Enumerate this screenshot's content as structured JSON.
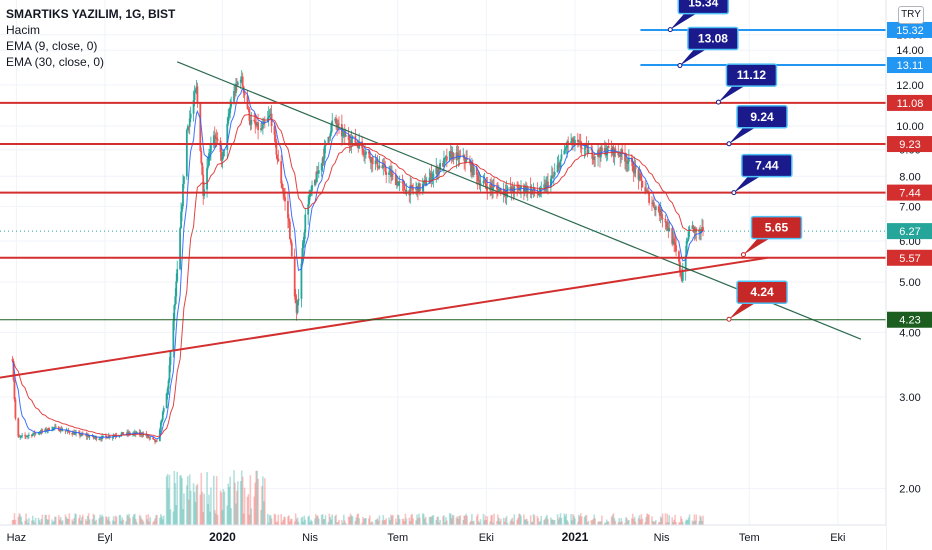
{
  "legend": {
    "title": "SMARTIKS YAZILIM, 1G, BIST",
    "volume": "Hacim",
    "ema9": "EMA (9, close, 0)",
    "ema30": "EMA (30, close, 0)"
  },
  "currency_button": "TRY",
  "colors": {
    "up": "#26a69a",
    "down": "#ef5350",
    "ema9": "#2962ff",
    "ema30": "#e03030",
    "level_red": "#d32f2f",
    "level_blue": "#2196f3",
    "level_green": "#1b5e20",
    "callout_navy": "#1a1a8c",
    "callout_red": "#c62828",
    "trend_down": "#2e6b4f",
    "trend_up": "#d32f2f",
    "last_price": "#26a69a"
  },
  "chart_data": {
    "type": "candlestick",
    "title": "SMARTIKS YAZILIM, 1G, BIST",
    "y_axis": {
      "scale": "log",
      "ticks": [
        "2.00",
        "3.00",
        "4.00",
        "5.00",
        "6.00",
        "7.00",
        "8.00",
        "9.00",
        "10.00",
        "12.00",
        "14.00",
        "15.00"
      ],
      "range": [
        1.7,
        17.5
      ]
    },
    "x_axis": {
      "ticks": [
        "Haz",
        "Eyl",
        "2020",
        "Nis",
        "Tem",
        "Eki",
        "2021",
        "Nis",
        "Tem",
        "Eki"
      ],
      "bold_ticks": [
        "2020",
        "2021"
      ],
      "range": [
        "2019-05-15",
        "2021-11-20"
      ]
    },
    "price_levels": [
      {
        "label": "15.32",
        "value": 15.32,
        "color": "blue",
        "from": "2021-03-10"
      },
      {
        "label": "13.11",
        "value": 13.11,
        "color": "blue",
        "from": "2021-03-10"
      },
      {
        "label": "11.08",
        "value": 11.08,
        "color": "red",
        "from": "2019-05-15"
      },
      {
        "label": "9.23",
        "value": 9.23,
        "color": "red",
        "from": "2019-05-15"
      },
      {
        "label": "7.44",
        "value": 7.44,
        "color": "red",
        "from": "2019-05-15"
      },
      {
        "label": "5.57",
        "value": 5.57,
        "color": "red",
        "from": "2019-05-15"
      },
      {
        "label": "4.23",
        "value": 4.23,
        "color": "green",
        "from": "2019-05-15"
      }
    ],
    "last_price": {
      "label": "6.27",
      "value": 6.27
    },
    "callouts": [
      {
        "label": "15.34",
        "value": 15.34,
        "anchor_date": "2021-04-10",
        "color": "navy"
      },
      {
        "label": "13.08",
        "value": 13.08,
        "anchor_date": "2021-04-20",
        "color": "navy"
      },
      {
        "label": "11.12",
        "value": 11.12,
        "anchor_date": "2021-05-30",
        "color": "navy"
      },
      {
        "label": "9.24",
        "value": 9.24,
        "anchor_date": "2021-06-10",
        "color": "navy"
      },
      {
        "label": "7.44",
        "value": 7.44,
        "anchor_date": "2021-06-15",
        "color": "navy"
      },
      {
        "label": "5.65",
        "value": 5.65,
        "anchor_date": "2021-06-25",
        "color": "red"
      },
      {
        "label": "4.24",
        "value": 4.24,
        "anchor_date": "2021-06-10",
        "color": "red"
      }
    ],
    "trendlines": [
      {
        "from": [
          "2019-05-05",
          3.25
        ],
        "to": [
          "2021-07-20",
          5.57
        ],
        "color": "red"
      },
      {
        "from": [
          "2019-11-15",
          13.3
        ],
        "to": [
          "2021-10-25",
          3.88
        ],
        "color": "green"
      }
    ],
    "price_path": [
      [
        "2019-05-28",
        3.55
      ],
      [
        "2019-06-01",
        2.5
      ],
      [
        "2019-06-20",
        2.55
      ],
      [
        "2019-07-10",
        2.62
      ],
      [
        "2019-08-01",
        2.55
      ],
      [
        "2019-08-25",
        2.5
      ],
      [
        "2019-09-20",
        2.55
      ],
      [
        "2019-10-10",
        2.55
      ],
      [
        "2019-10-25",
        2.45
      ],
      [
        "2019-11-05",
        3.1
      ],
      [
        "2019-11-15",
        5.2
      ],
      [
        "2019-11-25",
        9.8
      ],
      [
        "2019-12-05",
        11.8
      ],
      [
        "2019-12-12",
        7.5
      ],
      [
        "2019-12-22",
        9.8
      ],
      [
        "2020-01-01",
        8.6
      ],
      [
        "2020-01-10",
        11.2
      ],
      [
        "2020-01-20",
        12.5
      ],
      [
        "2020-01-30",
        10.2
      ],
      [
        "2020-02-10",
        9.8
      ],
      [
        "2020-02-20",
        10.5
      ],
      [
        "2020-03-01",
        8.0
      ],
      [
        "2020-03-10",
        6.5
      ],
      [
        "2020-03-18",
        4.3
      ],
      [
        "2020-03-28",
        7.0
      ],
      [
        "2020-04-10",
        8.2
      ],
      [
        "2020-04-25",
        10.3
      ],
      [
        "2020-05-05",
        9.6
      ],
      [
        "2020-05-20",
        9.3
      ],
      [
        "2020-06-05",
        8.6
      ],
      [
        "2020-06-25",
        8.0
      ],
      [
        "2020-07-10",
        7.5
      ],
      [
        "2020-07-25",
        7.6
      ],
      [
        "2020-08-10",
        8.2
      ],
      [
        "2020-08-25",
        8.8
      ],
      [
        "2020-09-10",
        8.6
      ],
      [
        "2020-09-25",
        7.8
      ],
      [
        "2020-10-10",
        7.55
      ],
      [
        "2020-10-25",
        7.5
      ],
      [
        "2020-11-10",
        7.6
      ],
      [
        "2020-11-25",
        7.4
      ],
      [
        "2020-12-10",
        8.0
      ],
      [
        "2020-12-25",
        9.3
      ],
      [
        "2021-01-05",
        9.2
      ],
      [
        "2021-01-20",
        8.8
      ],
      [
        "2021-02-05",
        9.0
      ],
      [
        "2021-02-20",
        8.8
      ],
      [
        "2021-03-05",
        8.2
      ],
      [
        "2021-03-20",
        7.2
      ],
      [
        "2021-04-05",
        6.6
      ],
      [
        "2021-04-15",
        5.8
      ],
      [
        "2021-04-22",
        5.1
      ],
      [
        "2021-04-30",
        6.4
      ],
      [
        "2021-05-10",
        6.2
      ],
      [
        "2021-05-14",
        6.27
      ]
    ]
  }
}
